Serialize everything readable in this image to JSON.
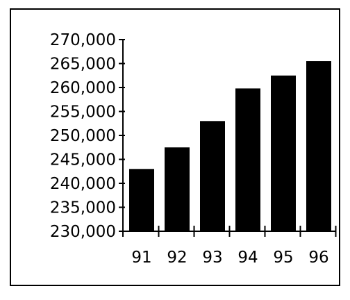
{
  "chart_data": {
    "type": "bar",
    "title": "",
    "xlabel": "",
    "ylabel": "",
    "categories": [
      "91",
      "92",
      "93",
      "94",
      "95",
      "96"
    ],
    "values": [
      243000,
      247500,
      253000,
      259800,
      262500,
      265500
    ],
    "ylim": [
      230000,
      270000
    ],
    "yticks": [
      270000,
      265000,
      260000,
      255000,
      250000,
      245000,
      240000,
      235000,
      230000
    ],
    "ytick_labels": [
      "270,000",
      "265,000",
      "260,000",
      "255,000",
      "250,000",
      "245,000",
      "240,000",
      "235,000",
      "230,000"
    ],
    "grid": false,
    "legend": "none",
    "bar_color": "#000000"
  }
}
